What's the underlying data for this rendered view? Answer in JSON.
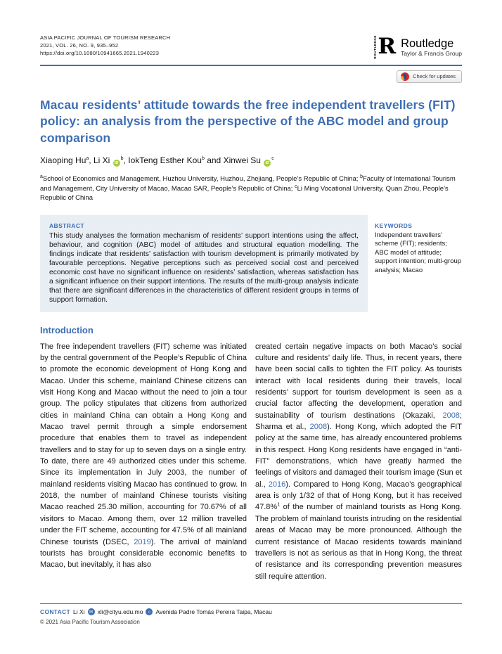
{
  "meta": {
    "journal": "ASIA PACIFIC JOURNAL OF TOURISM RESEARCH",
    "issue": "2021, VOL. 26, NO. 9, 935–952",
    "doi": "https://doi.org/10.1080/10941665.2021.1940223"
  },
  "publisher": {
    "logo_vertical": "ROUTLEDGE",
    "logo_letter": "R",
    "name": "Routledge",
    "tagline": "Taylor & Francis Group"
  },
  "update_badge": {
    "label": "Check for updates"
  },
  "article": {
    "title": "Macau residents’ attitude towards the free independent travellers (FIT) policy: an analysis from the perspective of the ABC model and group comparison",
    "authors": [
      {
        "t": "Xiaoping Hu"
      },
      {
        "t": "a",
        "sup": true
      },
      {
        "t": ", Li Xi "
      },
      {
        "icon": "orcid"
      },
      {
        "t": "b",
        "sup": true
      },
      {
        "t": ", IokTeng Esther Kou"
      },
      {
        "t": "b",
        "sup": true
      },
      {
        "t": " and Xinwei Su "
      },
      {
        "icon": "orcid"
      },
      {
        "t": "c",
        "sup": true
      }
    ],
    "affiliations": [
      {
        "t": "a",
        "sup": true
      },
      {
        "t": "School of Economics and Management, Huzhou University, Huzhou, Zhejiang, People’s Republic of China; "
      },
      {
        "t": "b",
        "sup": true
      },
      {
        "t": "Faculty of International Tourism and Management, City University of Macao, Macao SAR, People’s Republic of China; "
      },
      {
        "t": "c",
        "sup": true
      },
      {
        "t": "Li Ming Vocational University, Quan Zhou, People’s Republic of China"
      }
    ]
  },
  "abstract": {
    "heading": "ABSTRACT",
    "text": "This study analyses the formation mechanism of residents’ support intentions using the affect, behaviour, and cognition (ABC) model of attitudes and structural equation modelling. The findings indicate that residents’ satisfaction with tourism development is primarily motivated by favourable perceptions. Negative perceptions such as perceived social cost and perceived economic cost have no significant influence on residents’ satisfaction, whereas satisfaction has a significant influence on their support intentions. The results of the multi-group analysis indicate that there are significant differences in the characteristics of different resident groups in terms of support formation."
  },
  "keywords": {
    "heading": "KEYWORDS",
    "text": "Independent travellers’ scheme (FIT); residents; ABC model of attitude; support intention; multi-group analysis; Macao"
  },
  "sections": {
    "introduction_heading": "Introduction"
  },
  "body": {
    "left": [
      {
        "t": "The free independent travellers (FIT) scheme was initiated by the central government of the People’s Republic of China to promote the economic development of Hong Kong and Macao. Under this scheme, mainland Chinese citizens can visit Hong Kong and Macao without the need to join a tour group. The policy stipulates that citizens from authorized cities in mainland China can obtain a Hong Kong and Macao travel permit through a simple endorsement procedure that enables them to travel as independent travellers and to stay for up to seven days on a single entry. To date, there are 49 authorized cities under this scheme. Since its implementation in July 2003, the number of mainland residents visiting Macao has continued to grow. In 2018, the number of mainland Chinese tourists visiting Macao reached 25.30 million, accounting for 70.67% of all visitors to Macao. Among them, over 12 million travelled under the FIT scheme, accounting for 47.5% of all mainland Chinese tourists (DSEC, "
      },
      {
        "t": "2019",
        "link": true
      },
      {
        "t": "). The arrival of mainland tourists has brought considerable economic benefits to Macao, but inevitably, it has also"
      }
    ],
    "right": [
      {
        "t": "created certain negative impacts on both Macao’s social culture and residents’ daily life. Thus, in recent years, there have been social calls to tighten the FIT policy. As tourists interact with local residents during their travels, local residents’ support for tourism development is seen as a crucial factor affecting the development, operation and sustainability of tourism destinations (Okazaki, "
      },
      {
        "t": "2008",
        "link": true
      },
      {
        "t": "; Sharma et al., "
      },
      {
        "t": "2008",
        "link": true
      },
      {
        "t": "). Hong Kong, which adopted the FIT policy at the same time, has already encountered problems in this respect. Hong Kong residents have engaged in “anti-FIT” demonstrations, which have greatly harmed the feelings of visitors and damaged their tourism image (Sun et al., "
      },
      {
        "t": "2016",
        "link": true
      },
      {
        "t": "). Compared to Hong Kong, Macao’s geographical area is only 1/32 of that of Hong Kong, but it has received 47.8%"
      },
      {
        "t": "1",
        "sup": true
      },
      {
        "t": " of the number of mainland tourists as Hong Kong. The problem of mainland tourists intruding on the residential areas of Macao may be more pronounced. Although the current resistance of Macao residents towards mainland travellers is not as serious as that in Hong Kong, the threat of resistance and its corresponding prevention measures still require attention."
      }
    ]
  },
  "footer": {
    "contact_label": "CONTACT",
    "contact_name": "Li Xi",
    "contact_email": "xli@cityu.edu.mo",
    "contact_address": "Avenida Padre Tomás Pereira Taipa, Macau",
    "copyright": "© 2021 Asia Pacific Tourism Association",
    "mail_icon_glyph": "✉",
    "address_icon_glyph": "⌂"
  },
  "colors": {
    "accent_blue": "#3d6eb4",
    "orcid_green": "#a6ce39",
    "abstract_bg": "#e9edf4",
    "crossmark_red": "#e2231a"
  }
}
